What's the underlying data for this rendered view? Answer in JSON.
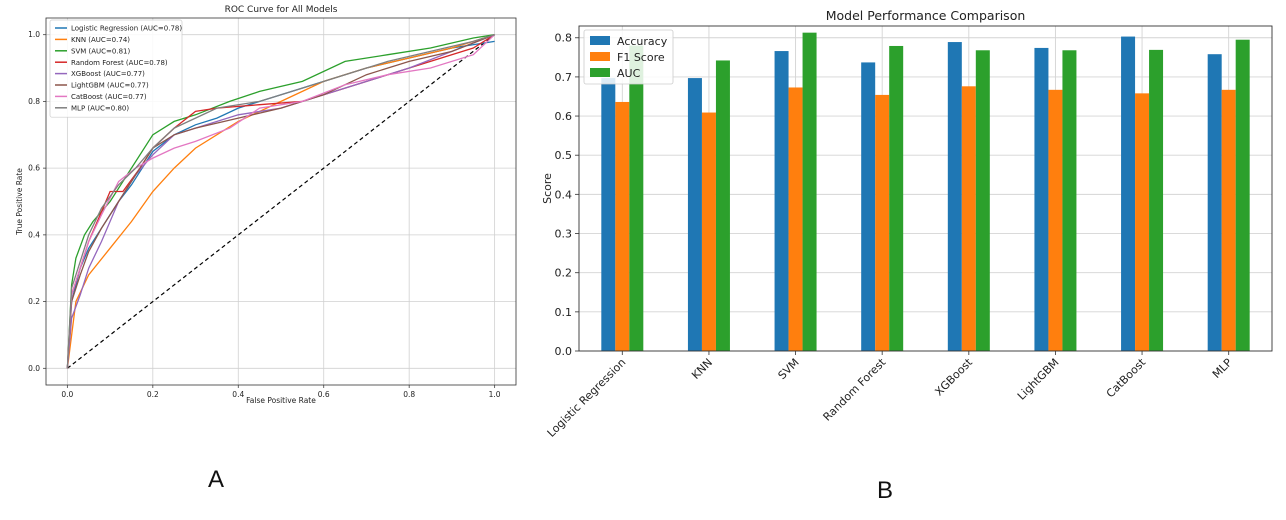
{
  "panel_labels": {
    "a": "A",
    "b": "B"
  },
  "chart_data": [
    {
      "type": "line",
      "title": "ROC Curve for All Models",
      "xlabel": "False Positive Rate",
      "ylabel": "True Positive Rate",
      "xlim": [
        -0.05,
        1.05
      ],
      "ylim": [
        -0.05,
        1.05
      ],
      "xticks": [
        "0.0",
        "0.2",
        "0.4",
        "0.6",
        "0.8",
        "1.0"
      ],
      "yticks": [
        "0.0",
        "0.2",
        "0.4",
        "0.6",
        "0.8",
        "1.0"
      ],
      "grid": true,
      "legend": "upper-left",
      "diagonal": {
        "x": [
          0,
          1
        ],
        "y": [
          0,
          1
        ],
        "style": "dashed",
        "color": "#000000"
      },
      "series": [
        {
          "name": "Logistic Regression (AUC=0.78)",
          "color": "#1f77b4",
          "x": [
            0,
            0.01,
            0.03,
            0.05,
            0.08,
            0.12,
            0.15,
            0.2,
            0.25,
            0.3,
            0.35,
            0.4,
            0.5,
            0.6,
            0.7,
            0.8,
            0.9,
            1.0
          ],
          "y": [
            0,
            0.2,
            0.3,
            0.36,
            0.42,
            0.5,
            0.55,
            0.65,
            0.7,
            0.73,
            0.75,
            0.78,
            0.82,
            0.86,
            0.9,
            0.93,
            0.96,
            0.98
          ]
        },
        {
          "name": "KNN (AUC=0.74)",
          "color": "#ff7f0e",
          "x": [
            0,
            0.02,
            0.05,
            0.1,
            0.15,
            0.2,
            0.25,
            0.3,
            0.4,
            0.5,
            0.6,
            0.7,
            0.8,
            0.9,
            1.0
          ],
          "y": [
            0,
            0.2,
            0.28,
            0.36,
            0.44,
            0.53,
            0.6,
            0.66,
            0.74,
            0.8,
            0.86,
            0.9,
            0.93,
            0.96,
            1.0
          ]
        },
        {
          "name": "SVM (AUC=0.81)",
          "color": "#2ca02c",
          "x": [
            0,
            0.01,
            0.02,
            0.04,
            0.06,
            0.1,
            0.14,
            0.2,
            0.25,
            0.3,
            0.38,
            0.45,
            0.55,
            0.65,
            0.75,
            0.85,
            0.95,
            1.0
          ],
          "y": [
            0,
            0.25,
            0.33,
            0.4,
            0.44,
            0.5,
            0.58,
            0.7,
            0.74,
            0.76,
            0.8,
            0.83,
            0.86,
            0.92,
            0.94,
            0.96,
            0.99,
            1.0
          ]
        },
        {
          "name": "Random Forest (AUC=0.78)",
          "color": "#d62728",
          "x": [
            0,
            0.01,
            0.03,
            0.05,
            0.07,
            0.1,
            0.13,
            0.17,
            0.2,
            0.25,
            0.3,
            0.35,
            0.45,
            0.55,
            0.65,
            0.75,
            0.85,
            0.95,
            1.0
          ],
          "y": [
            0,
            0.22,
            0.3,
            0.38,
            0.44,
            0.53,
            0.53,
            0.6,
            0.66,
            0.72,
            0.77,
            0.78,
            0.79,
            0.8,
            0.84,
            0.88,
            0.92,
            0.96,
            1.0
          ]
        },
        {
          "name": "XGBoost (AUC=0.77)",
          "color": "#9467bd",
          "x": [
            0,
            0.01,
            0.03,
            0.05,
            0.08,
            0.12,
            0.16,
            0.2,
            0.25,
            0.3,
            0.4,
            0.5,
            0.6,
            0.7,
            0.8,
            0.9,
            1.0
          ],
          "y": [
            0,
            0.15,
            0.22,
            0.3,
            0.38,
            0.5,
            0.58,
            0.64,
            0.7,
            0.72,
            0.76,
            0.78,
            0.82,
            0.86,
            0.9,
            0.95,
            1.0
          ]
        },
        {
          "name": "LightGBM (AUC=0.77)",
          "color": "#8c564b",
          "x": [
            0,
            0.01,
            0.03,
            0.05,
            0.08,
            0.12,
            0.16,
            0.2,
            0.25,
            0.3,
            0.4,
            0.5,
            0.6,
            0.7,
            0.8,
            0.9,
            1.0
          ],
          "y": [
            0,
            0.2,
            0.28,
            0.35,
            0.42,
            0.5,
            0.58,
            0.66,
            0.7,
            0.72,
            0.75,
            0.78,
            0.82,
            0.88,
            0.92,
            0.95,
            1.0
          ]
        },
        {
          "name": "CatBoost (AUC=0.77)",
          "color": "#e377c2",
          "x": [
            0,
            0.01,
            0.03,
            0.05,
            0.08,
            0.12,
            0.16,
            0.2,
            0.25,
            0.3,
            0.38,
            0.45,
            0.55,
            0.65,
            0.75,
            0.85,
            0.95,
            1.0
          ],
          "y": [
            0,
            0.22,
            0.3,
            0.38,
            0.46,
            0.56,
            0.6,
            0.63,
            0.66,
            0.68,
            0.72,
            0.78,
            0.8,
            0.85,
            0.88,
            0.9,
            0.94,
            1.0
          ]
        },
        {
          "name": "MLP (AUC=0.80)",
          "color": "#7f7f7f",
          "x": [
            0,
            0.01,
            0.03,
            0.05,
            0.08,
            0.12,
            0.16,
            0.2,
            0.25,
            0.3,
            0.35,
            0.45,
            0.55,
            0.65,
            0.75,
            0.85,
            0.95,
            1.0
          ],
          "y": [
            0,
            0.24,
            0.32,
            0.4,
            0.48,
            0.55,
            0.6,
            0.66,
            0.72,
            0.75,
            0.78,
            0.8,
            0.84,
            0.88,
            0.92,
            0.95,
            0.98,
            1.0
          ]
        }
      ]
    },
    {
      "type": "bar",
      "title": "Model Performance Comparison",
      "xlabel": "",
      "ylabel": "Score",
      "ylim": [
        0,
        0.83
      ],
      "yticks": [
        "0.0",
        "0.1",
        "0.2",
        "0.3",
        "0.4",
        "0.5",
        "0.6",
        "0.7",
        "0.8"
      ],
      "grid": true,
      "legend": "upper-left",
      "categories": [
        "Logistic Regression",
        "KNN",
        "SVM",
        "Random Forest",
        "XGBoost",
        "LightGBM",
        "CatBoost",
        "MLP"
      ],
      "series": [
        {
          "name": "Accuracy",
          "color": "#1f77b4",
          "values": [
            0.697,
            0.697,
            0.766,
            0.737,
            0.789,
            0.774,
            0.803,
            0.758
          ]
        },
        {
          "name": "F1 Score",
          "color": "#ff7f0e",
          "values": [
            0.636,
            0.609,
            0.673,
            0.654,
            0.676,
            0.667,
            0.658,
            0.667
          ]
        },
        {
          "name": "AUC",
          "color": "#2ca02c",
          "values": [
            0.78,
            0.742,
            0.813,
            0.779,
            0.768,
            0.768,
            0.769,
            0.795
          ]
        }
      ]
    }
  ]
}
